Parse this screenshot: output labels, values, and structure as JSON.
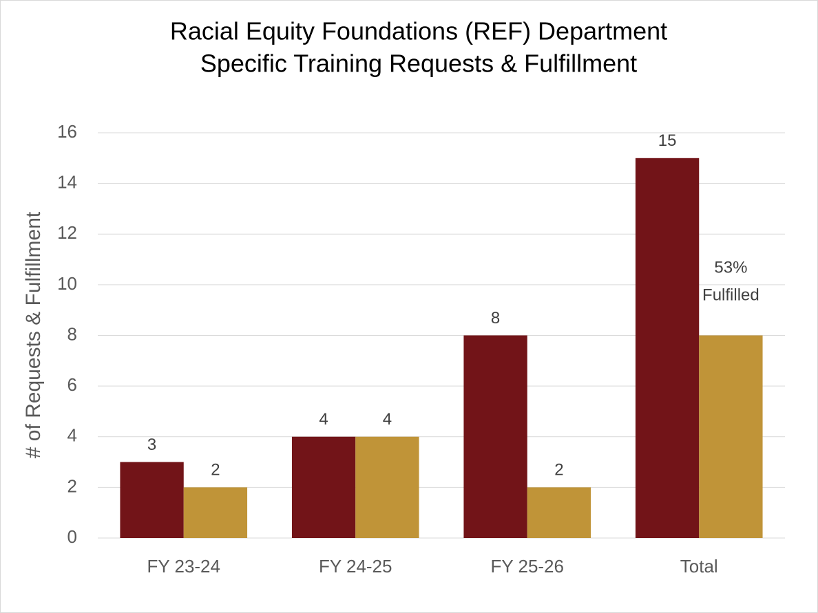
{
  "chart_data": {
    "type": "bar",
    "title": [
      "Racial Equity Foundations (REF) Department",
      "Specific Training Requests & Fulfillment"
    ],
    "y_label": "# of Requests & Fulfillment",
    "categories": [
      "FY 23-24",
      "FY 24-25",
      "FY 25-26",
      "Total"
    ],
    "series": [
      {
        "color": "#721418",
        "values": [
          3,
          4,
          8,
          15
        ]
      },
      {
        "color": "#c09438",
        "values": [
          2,
          4,
          2,
          8
        ]
      }
    ],
    "data_labels": [
      [
        true,
        true,
        true,
        true
      ],
      [
        true,
        true,
        true,
        false
      ]
    ],
    "annotation": [
      "53%",
      "Fulfilled"
    ],
    "ylim": [
      0,
      16
    ],
    "yticks": [
      0,
      2,
      4,
      6,
      8,
      10,
      12,
      14,
      16
    ],
    "grid": true
  }
}
